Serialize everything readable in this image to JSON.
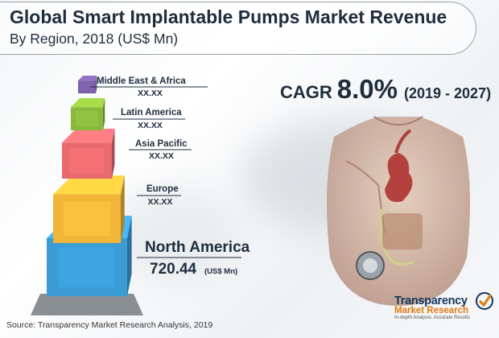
{
  "title": "Global Smart Implantable Pumps Market Revenue",
  "subtitle": "By Region, 2018 (US$ Mn)",
  "cagr": {
    "label": "CAGR",
    "value": "8.0%",
    "period": "(2019 - 2027)"
  },
  "source": "Source: Transparency Market Research Analysis, 2019",
  "logo": {
    "line1": "Transparency",
    "line2": "Market Research",
    "tagline": "In-depth Analysis. Accurate Results"
  },
  "chart_data": {
    "type": "bar",
    "subtype": "stacked-cube-pyramid",
    "title": "Global Smart Implantable Pumps Market Revenue",
    "subtitle": "By Region, 2018 (US$ Mn)",
    "categories": [
      "Middle East & Africa",
      "Latin America",
      "Asia Pacific",
      "Europe",
      "North America"
    ],
    "value_labels": [
      "XX.XX",
      "XX.XX",
      "XX.XX",
      "XX.XX",
      "720.44"
    ],
    "values": [
      null,
      null,
      null,
      null,
      720.44
    ],
    "unit": "(US$ Mn)",
    "colors": [
      "#7b5fa8",
      "#8ab83d",
      "#e86a6f",
      "#f1b53a",
      "#3a9bd5"
    ]
  }
}
